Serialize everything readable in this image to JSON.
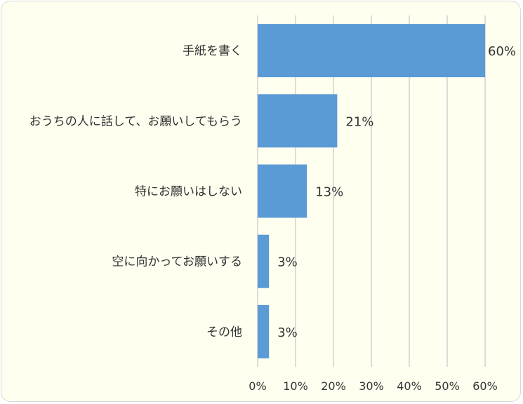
{
  "chart_data": {
    "type": "bar",
    "orientation": "horizontal",
    "categories": [
      "手紙を書く",
      "おうちの人に話して、お願いしてもらう",
      "特にお願いはしない",
      "空に向かってお願いする",
      "その他"
    ],
    "values": [
      60,
      21,
      13,
      3,
      3
    ],
    "data_labels": [
      "60%",
      "21%",
      "13%",
      "3%",
      "3%"
    ],
    "xlim": [
      0,
      60
    ],
    "x_ticks": [
      0,
      10,
      20,
      30,
      40,
      50,
      60
    ],
    "x_tick_labels": [
      "0%",
      "10%",
      "20%",
      "30%",
      "40%",
      "50%",
      "60%"
    ],
    "grid": true,
    "legend": "none",
    "bar_color": "#5b9bd5",
    "grid_color": "#d0d0d0",
    "background_color": "#fffff0",
    "title": "",
    "xlabel": "",
    "ylabel": ""
  }
}
